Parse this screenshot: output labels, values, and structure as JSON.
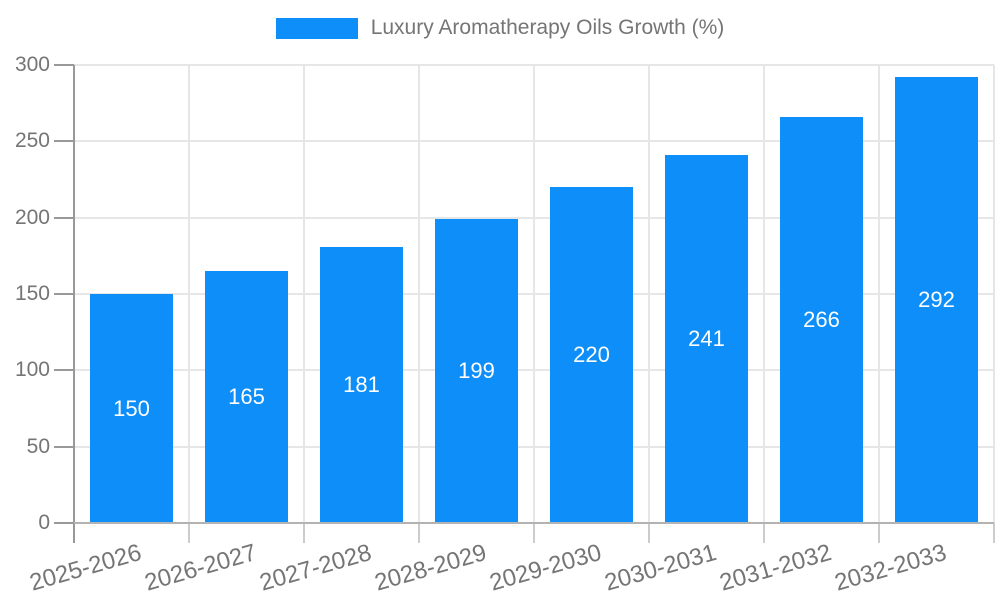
{
  "legend": {
    "label": "Luxury Aromatherapy Oils Growth (%)"
  },
  "chart_data": {
    "type": "bar",
    "title": "Luxury Aromatherapy Oils Growth (%)",
    "categories": [
      "2025-2026",
      "2026-2027",
      "2027-2028",
      "2028-2029",
      "2029-2030",
      "2030-2031",
      "2031-2032",
      "2032-2033"
    ],
    "values": [
      150,
      165,
      181,
      199,
      220,
      241,
      266,
      292
    ],
    "xlabel": "",
    "ylabel": "",
    "ylim": [
      0,
      300
    ],
    "yticks": [
      0,
      50,
      100,
      150,
      200,
      250,
      300
    ],
    "grid": true,
    "legend_position": "top-center",
    "bar_label_position": "center",
    "colors": {
      "bar": "#0d8ef9",
      "bar_label": "#ffffff",
      "axis_text": "#757575",
      "grid_line": "#e6e6e6",
      "axis_line": "#999999",
      "x_axis_line": "#b3b3b3",
      "tick": "#cccccc",
      "background": "#ffffff"
    }
  }
}
